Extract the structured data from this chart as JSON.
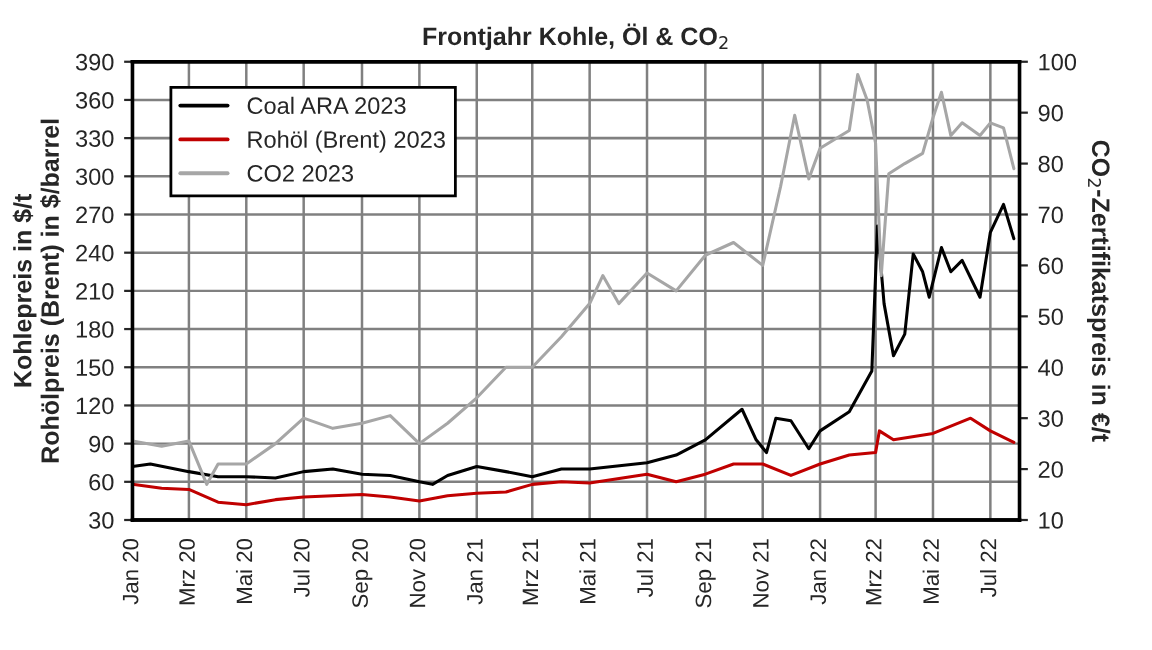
{
  "chart_data": {
    "type": "line",
    "title": "Frontjahr Kohle, Öl & CO$_{2}$",
    "ylabel": "Kohlepreis in $/t\nRohölpreis (Brent) in $/barrel",
    "y2label": "CO$_{2}$-Zertifikatspreis in €/t",
    "xlim": [
      "2020-01-01",
      "2022-08-01"
    ],
    "xticks": [
      {
        "value": "2020-01-01",
        "label": "Jan 20"
      },
      {
        "value": "2020-03-01",
        "label": "Mrz 20"
      },
      {
        "value": "2020-05-01",
        "label": "Mai 20"
      },
      {
        "value": "2020-07-01",
        "label": "Jul 20"
      },
      {
        "value": "2020-09-01",
        "label": "Sep 20"
      },
      {
        "value": "2020-11-01",
        "label": "Nov 20"
      },
      {
        "value": "2021-01-01",
        "label": "Jan 21"
      },
      {
        "value": "2021-03-01",
        "label": "Mrz 21"
      },
      {
        "value": "2021-05-01",
        "label": "Mai 21"
      },
      {
        "value": "2021-07-01",
        "label": "Jul 21"
      },
      {
        "value": "2021-09-01",
        "label": "Sep 21"
      },
      {
        "value": "2021-11-01",
        "label": "Nov 21"
      },
      {
        "value": "2022-01-01",
        "label": "Jan 22"
      },
      {
        "value": "2022-03-01",
        "label": "Mrz 22"
      },
      {
        "value": "2022-05-01",
        "label": "Mai 22"
      },
      {
        "value": "2022-07-01",
        "label": "Jul 22"
      }
    ],
    "ylim": [
      30,
      390
    ],
    "yticks": [
      30,
      60,
      90,
      120,
      150,
      180,
      210,
      240,
      270,
      300,
      330,
      360,
      390
    ],
    "y2lim": [
      10,
      100
    ],
    "y2ticks": [
      10,
      20,
      30,
      40,
      50,
      60,
      70,
      80,
      90,
      100
    ],
    "grid": true,
    "legend": "top left",
    "marker": "none",
    "line_style": "solid",
    "series": [
      {
        "name": "Coal ARA 2023",
        "color": "#000000",
        "x": [
          "2020-01-01",
          "2020-01-20",
          "2020-03-01",
          "2020-04-01",
          "2020-05-01",
          "2020-06-01",
          "2020-07-01",
          "2020-08-01",
          "2020-09-01",
          "2020-10-01",
          "2020-11-01",
          "2020-11-15",
          "2020-12-01",
          "2021-01-01",
          "2021-02-01",
          "2021-03-01",
          "2021-04-01",
          "2021-05-01",
          "2021-07-01",
          "2021-08-01",
          "2021-09-01",
          "2021-10-10",
          "2021-10-25",
          "2021-11-05",
          "2021-11-15",
          "2021-12-01",
          "2021-12-20",
          "2022-01-01",
          "2022-02-01",
          "2022-02-25",
          "2022-03-03",
          "2022-03-10",
          "2022-03-20",
          "2022-04-01",
          "2022-04-10",
          "2022-04-20",
          "2022-04-27",
          "2022-05-10",
          "2022-05-20",
          "2022-06-01",
          "2022-06-20",
          "2022-07-01",
          "2022-07-15",
          "2022-07-26"
        ],
        "values": [
          72,
          74,
          68,
          64,
          64,
          63,
          68,
          70,
          66,
          65,
          60,
          58,
          65,
          72,
          68,
          64,
          70,
          70,
          75,
          81,
          93,
          117,
          93,
          83,
          110,
          108,
          86,
          100,
          115,
          147,
          261,
          200,
          159,
          176,
          239,
          225,
          205,
          244,
          225,
          234,
          205,
          256,
          278,
          251
        ]
      },
      {
        "name": "Rohöl (Brent) 2023",
        "color": "#c00000",
        "x": [
          "2020-01-01",
          "2020-02-01",
          "2020-03-01",
          "2020-04-01",
          "2020-05-01",
          "2020-06-01",
          "2020-07-01",
          "2020-09-01",
          "2020-10-01",
          "2020-11-01",
          "2020-12-01",
          "2021-01-01",
          "2021-02-01",
          "2021-03-01",
          "2021-04-01",
          "2021-05-01",
          "2021-07-01",
          "2021-08-01",
          "2021-09-01",
          "2021-10-01",
          "2021-11-01",
          "2021-12-01",
          "2022-01-01",
          "2022-02-01",
          "2022-03-01",
          "2022-03-05",
          "2022-03-20",
          "2022-05-01",
          "2022-06-10",
          "2022-07-01",
          "2022-07-26"
        ],
        "values": [
          58,
          55,
          54,
          44,
          42,
          46,
          48,
          50,
          48,
          45,
          49,
          51,
          52,
          58,
          60,
          59,
          66,
          60,
          66,
          74,
          74,
          65,
          74,
          81,
          83,
          100,
          93,
          98,
          110,
          100,
          91
        ]
      },
      {
        "name": "CO2 2023",
        "color": "#a6a6a6",
        "axis": "y2",
        "x": [
          "2020-01-01",
          "2020-02-01",
          "2020-03-01",
          "2020-03-20",
          "2020-04-01",
          "2020-05-01",
          "2020-06-01",
          "2020-07-01",
          "2020-08-01",
          "2020-09-01",
          "2020-10-01",
          "2020-11-01",
          "2020-12-01",
          "2021-01-01",
          "2021-02-01",
          "2021-03-01",
          "2021-04-01",
          "2021-05-01",
          "2021-05-15",
          "2021-06-01",
          "2021-07-01",
          "2021-08-01",
          "2021-09-01",
          "2021-10-01",
          "2021-11-01",
          "2021-11-20",
          "2021-12-05",
          "2021-12-20",
          "2022-01-01",
          "2022-02-01",
          "2022-02-10",
          "2022-02-20",
          "2022-03-01",
          "2022-03-07",
          "2022-03-15",
          "2022-04-01",
          "2022-04-20",
          "2022-05-01",
          "2022-05-10",
          "2022-05-20",
          "2022-06-01",
          "2022-06-20",
          "2022-07-01",
          "2022-07-15",
          "2022-07-26"
        ],
        "values": [
          25.5,
          24.5,
          25.5,
          17,
          21,
          21,
          25,
          30,
          28,
          29,
          30.5,
          25,
          29,
          34,
          40,
          40,
          46,
          52.5,
          58,
          52.5,
          58.5,
          55,
          62,
          64.5,
          60,
          75.5,
          89.5,
          77,
          83,
          86.5,
          97.5,
          92.5,
          84,
          58,
          78,
          80,
          82,
          89,
          94,
          85.5,
          88,
          85.5,
          88,
          87,
          79
        ]
      }
    ]
  }
}
